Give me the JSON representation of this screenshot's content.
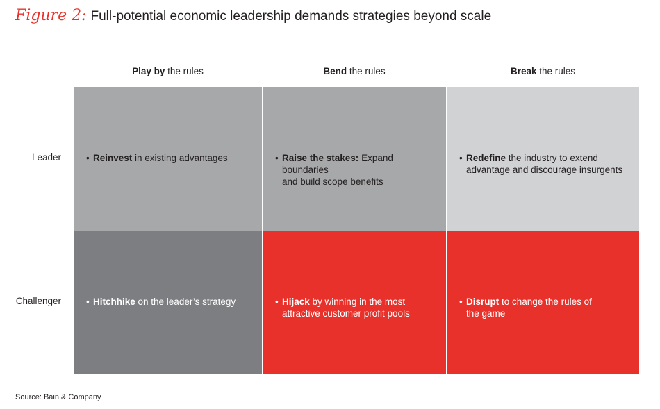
{
  "figure_label": "Figure 2:",
  "title": "Full-potential economic leadership demands strategies beyond scale",
  "columns": [
    {
      "bold": "Play by",
      "rest": " the rules"
    },
    {
      "bold": "Bend",
      "rest": " the rules"
    },
    {
      "bold": "Break",
      "rest": " the rules"
    }
  ],
  "rows": [
    "Leader",
    "Challenger"
  ],
  "colors": {
    "light_gray": "#a7a8aa",
    "pale_gray": "#d1d2d4",
    "dark_gray": "#7d7e81",
    "red": "#e8312a",
    "accent": "#e8312a"
  },
  "cells": {
    "leader_play": {
      "bullet": "•",
      "bold": "Reinvest",
      "line1": " in existing advantages",
      "line2": ""
    },
    "leader_bend": {
      "bullet": "•",
      "bold": "Raise the stakes:",
      "line1": " Expand boundaries",
      "line2": "and build scope benefits"
    },
    "leader_break": {
      "bullet": "•",
      "bold": "Redefine",
      "line1": " the industry to extend",
      "line2": "advantage and discourage insurgents"
    },
    "challenger_play": {
      "bullet": "•",
      "bold": "Hitchhike",
      "line1": " on the leader’s strategy",
      "line2": ""
    },
    "challenger_bend": {
      "bullet": "•",
      "bold": "Hijack",
      "line1": " by winning in the most",
      "line2": "attractive customer profit pools"
    },
    "challenger_break": {
      "bullet": "•",
      "bold": "Disrupt",
      "line1": " to change the rules of",
      "line2": "the game"
    }
  },
  "source": "Source: Bain & Company"
}
